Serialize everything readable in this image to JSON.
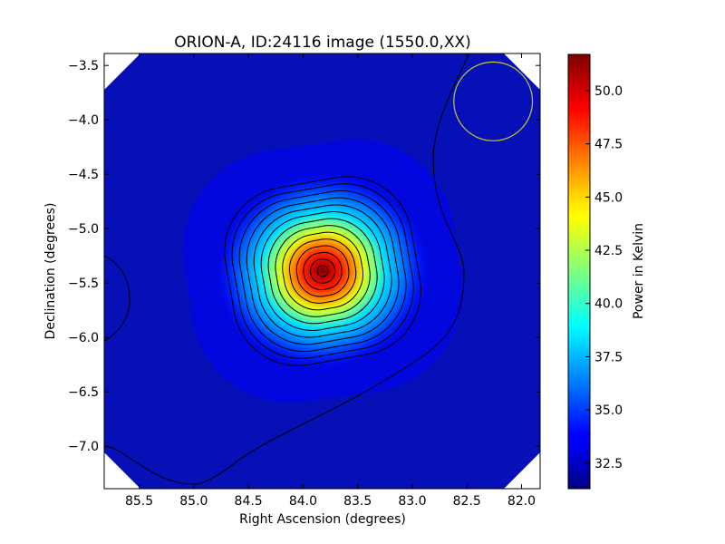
{
  "chart_data": {
    "type": "heatmap",
    "title": "ORION-A, ID:24116 image (1550.0,XX)",
    "xlabel": "Right Ascension (degrees)",
    "ylabel": "Declination (degrees)",
    "xlim": [
      85.82,
      81.83
    ],
    "ylim": [
      -7.39,
      -3.39
    ],
    "x_ticks": [
      85.5,
      85.0,
      84.5,
      84.0,
      83.5,
      83.0,
      82.5,
      82.0
    ],
    "x_tick_labels": [
      "85.5",
      "85.0",
      "84.5",
      "84.0",
      "83.5",
      "83.0",
      "82.5",
      "82.0"
    ],
    "y_ticks": [
      -3.5,
      -4.0,
      -4.5,
      -5.0,
      -5.5,
      -6.0,
      -6.5,
      -7.0
    ],
    "y_tick_labels": [
      "−3.5",
      "−4.0",
      "−4.5",
      "−5.0",
      "−5.5",
      "−6.0",
      "−6.5",
      "−7.0"
    ],
    "grid": false,
    "colormap": "jet",
    "colorbar": {
      "label": "Power in Kelvin",
      "range": [
        31.3,
        51.7
      ],
      "ticks": [
        32.5,
        35.0,
        37.5,
        40.0,
        42.5,
        45.0,
        47.5,
        50.0
      ],
      "tick_labels": [
        "32.5",
        "35.0",
        "37.5",
        "40.0",
        "42.5",
        "45.0",
        "47.5",
        "50.0"
      ]
    },
    "source_peak": {
      "ra": 83.82,
      "dec": -5.39,
      "value": 51.5
    },
    "background_level": 32.0,
    "contour_levels": [
      32.5,
      33.5,
      35.0,
      36.5,
      38.0,
      39.5,
      41.0,
      42.5,
      44.0,
      45.5,
      47.0,
      48.5,
      50.0,
      51.2
    ],
    "beam_circle": {
      "ra": 82.26,
      "dec": -3.83,
      "radius_deg": 0.36,
      "color": "#c8c832"
    }
  }
}
